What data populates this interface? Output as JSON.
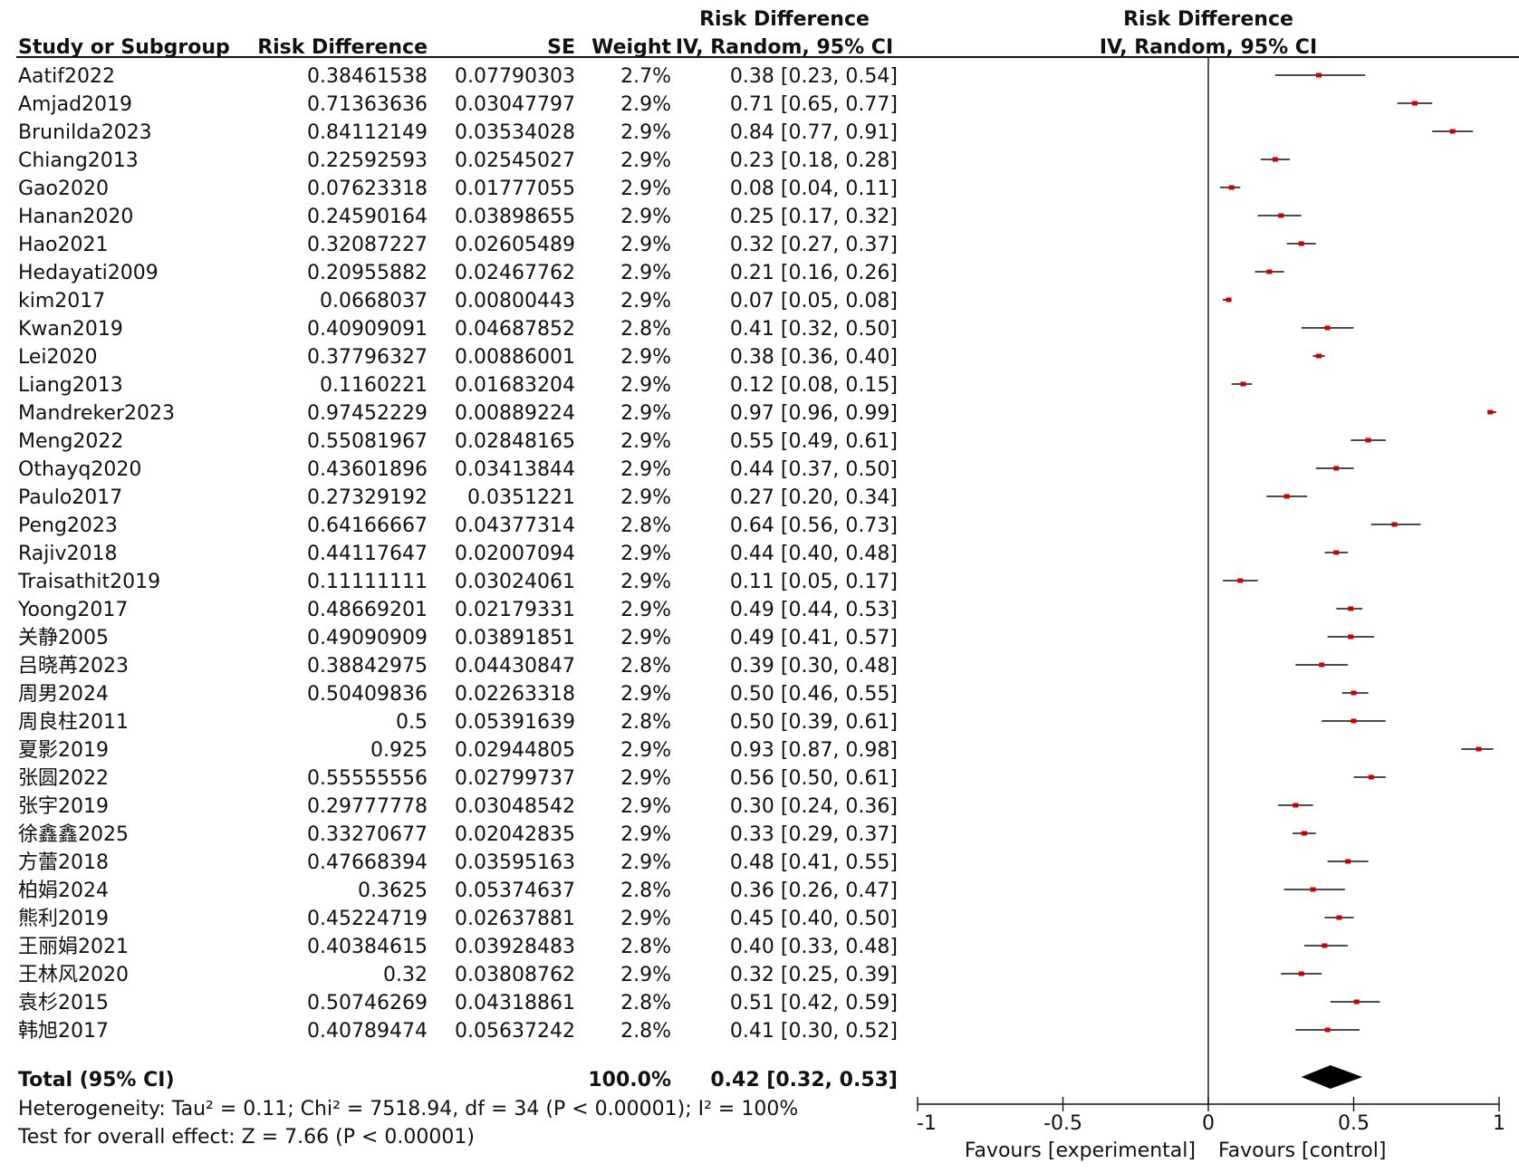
{
  "headers": {
    "group_title_left": "Risk Difference",
    "group_title_right": "Risk Difference",
    "study": "Study or Subgroup",
    "rd": "Risk Difference",
    "se": "SE",
    "weight": "Weight",
    "ci_method_left": "IV, Random, 95% CI",
    "ci_method_right": "IV, Random, 95% CI"
  },
  "total": {
    "label": "Total (95% CI)",
    "weight": "100.0%",
    "ci_text": "0.42 [0.32, 0.53]"
  },
  "heterogeneity": "Heterogeneity: Tau² = 0.11; Chi² = 7518.94, df = 34 (P < 0.00001); I² = 100%",
  "overall_effect": "Test for overall effect: Z = 7.66 (P < 0.00001)",
  "favours_left": "Favours [experimental]",
  "favours_right": "Favours [control]",
  "colors": {
    "point": "#cc0000",
    "line": "#111111",
    "diamond": "#000000"
  },
  "chart_data": {
    "type": "forest",
    "xlim": [
      -1,
      1
    ],
    "xticks": [
      "-1",
      "-0.5",
      "0",
      "0.5",
      "1"
    ],
    "xtick_values": [
      -1,
      -0.5,
      0,
      0.5,
      1
    ],
    "studies": [
      {
        "name": "Aatif2022",
        "rd": "0.38461538",
        "se": "0.07790303",
        "weight": "2.7%",
        "ci": "0.38 [0.23, 0.54]",
        "est": 0.38,
        "lo": 0.23,
        "hi": 0.54
      },
      {
        "name": "Amjad2019",
        "rd": "0.71363636",
        "se": "0.03047797",
        "weight": "2.9%",
        "ci": "0.71 [0.65, 0.77]",
        "est": 0.71,
        "lo": 0.65,
        "hi": 0.77
      },
      {
        "name": "Brunilda2023",
        "rd": "0.84112149",
        "se": "0.03534028",
        "weight": "2.9%",
        "ci": "0.84 [0.77, 0.91]",
        "est": 0.84,
        "lo": 0.77,
        "hi": 0.91
      },
      {
        "name": "Chiang2013",
        "rd": "0.22592593",
        "se": "0.02545027",
        "weight": "2.9%",
        "ci": "0.23 [0.18, 0.28]",
        "est": 0.23,
        "lo": 0.18,
        "hi": 0.28
      },
      {
        "name": "Gao2020",
        "rd": "0.07623318",
        "se": "0.01777055",
        "weight": "2.9%",
        "ci": "0.08 [0.04, 0.11]",
        "est": 0.08,
        "lo": 0.04,
        "hi": 0.11
      },
      {
        "name": "Hanan2020",
        "rd": "0.24590164",
        "se": "0.03898655",
        "weight": "2.9%",
        "ci": "0.25 [0.17, 0.32]",
        "est": 0.25,
        "lo": 0.17,
        "hi": 0.32
      },
      {
        "name": "Hao2021",
        "rd": "0.32087227",
        "se": "0.02605489",
        "weight": "2.9%",
        "ci": "0.32 [0.27, 0.37]",
        "est": 0.32,
        "lo": 0.27,
        "hi": 0.37
      },
      {
        "name": "Hedayati2009",
        "rd": "0.20955882",
        "se": "0.02467762",
        "weight": "2.9%",
        "ci": "0.21 [0.16, 0.26]",
        "est": 0.21,
        "lo": 0.16,
        "hi": 0.26
      },
      {
        "name": "kim2017",
        "rd": "0.0668037",
        "se": "0.00800443",
        "weight": "2.9%",
        "ci": "0.07 [0.05, 0.08]",
        "est": 0.07,
        "lo": 0.05,
        "hi": 0.08
      },
      {
        "name": "Kwan2019",
        "rd": "0.40909091",
        "se": "0.04687852",
        "weight": "2.8%",
        "ci": "0.41 [0.32, 0.50]",
        "est": 0.41,
        "lo": 0.32,
        "hi": 0.5
      },
      {
        "name": "Lei2020",
        "rd": "0.37796327",
        "se": "0.00886001",
        "weight": "2.9%",
        "ci": "0.38 [0.36, 0.40]",
        "est": 0.38,
        "lo": 0.36,
        "hi": 0.4
      },
      {
        "name": "Liang2013",
        "rd": "0.1160221",
        "se": "0.01683204",
        "weight": "2.9%",
        "ci": "0.12 [0.08, 0.15]",
        "est": 0.12,
        "lo": 0.08,
        "hi": 0.15
      },
      {
        "name": "Mandreker2023",
        "rd": "0.97452229",
        "se": "0.00889224",
        "weight": "2.9%",
        "ci": "0.97 [0.96, 0.99]",
        "est": 0.97,
        "lo": 0.96,
        "hi": 0.99
      },
      {
        "name": "Meng2022",
        "rd": "0.55081967",
        "se": "0.02848165",
        "weight": "2.9%",
        "ci": "0.55 [0.49, 0.61]",
        "est": 0.55,
        "lo": 0.49,
        "hi": 0.61
      },
      {
        "name": "Othayq2020",
        "rd": "0.43601896",
        "se": "0.03413844",
        "weight": "2.9%",
        "ci": "0.44 [0.37, 0.50]",
        "est": 0.44,
        "lo": 0.37,
        "hi": 0.5
      },
      {
        "name": "Paulo2017",
        "rd": "0.27329192",
        "se": "0.0351221",
        "weight": "2.9%",
        "ci": "0.27 [0.20, 0.34]",
        "est": 0.27,
        "lo": 0.2,
        "hi": 0.34
      },
      {
        "name": "Peng2023",
        "rd": "0.64166667",
        "se": "0.04377314",
        "weight": "2.8%",
        "ci": "0.64 [0.56, 0.73]",
        "est": 0.64,
        "lo": 0.56,
        "hi": 0.73
      },
      {
        "name": "Rajiv2018",
        "rd": "0.44117647",
        "se": "0.02007094",
        "weight": "2.9%",
        "ci": "0.44 [0.40, 0.48]",
        "est": 0.44,
        "lo": 0.4,
        "hi": 0.48
      },
      {
        "name": "Traisathit2019",
        "rd": "0.11111111",
        "se": "0.03024061",
        "weight": "2.9%",
        "ci": "0.11 [0.05, 0.17]",
        "est": 0.11,
        "lo": 0.05,
        "hi": 0.17
      },
      {
        "name": "Yoong2017",
        "rd": "0.48669201",
        "se": "0.02179331",
        "weight": "2.9%",
        "ci": "0.49 [0.44, 0.53]",
        "est": 0.49,
        "lo": 0.44,
        "hi": 0.53
      },
      {
        "name": "关静2005",
        "rd": "0.49090909",
        "se": "0.03891851",
        "weight": "2.9%",
        "ci": "0.49 [0.41, 0.57]",
        "est": 0.49,
        "lo": 0.41,
        "hi": 0.57
      },
      {
        "name": "吕晓苒2023",
        "rd": "0.38842975",
        "se": "0.04430847",
        "weight": "2.8%",
        "ci": "0.39 [0.30, 0.48]",
        "est": 0.39,
        "lo": 0.3,
        "hi": 0.48
      },
      {
        "name": "周男2024",
        "rd": "0.50409836",
        "se": "0.02263318",
        "weight": "2.9%",
        "ci": "0.50 [0.46, 0.55]",
        "est": 0.5,
        "lo": 0.46,
        "hi": 0.55
      },
      {
        "name": "周良柱2011",
        "rd": "0.5",
        "se": "0.05391639",
        "weight": "2.8%",
        "ci": "0.50 [0.39, 0.61]",
        "est": 0.5,
        "lo": 0.39,
        "hi": 0.61
      },
      {
        "name": "夏影2019",
        "rd": "0.925",
        "se": "0.02944805",
        "weight": "2.9%",
        "ci": "0.93 [0.87, 0.98]",
        "est": 0.93,
        "lo": 0.87,
        "hi": 0.98
      },
      {
        "name": "张圆2022",
        "rd": "0.55555556",
        "se": "0.02799737",
        "weight": "2.9%",
        "ci": "0.56 [0.50, 0.61]",
        "est": 0.56,
        "lo": 0.5,
        "hi": 0.61
      },
      {
        "name": "张宇2019",
        "rd": "0.29777778",
        "se": "0.03048542",
        "weight": "2.9%",
        "ci": "0.30 [0.24, 0.36]",
        "est": 0.3,
        "lo": 0.24,
        "hi": 0.36
      },
      {
        "name": "徐鑫鑫2025",
        "rd": "0.33270677",
        "se": "0.02042835",
        "weight": "2.9%",
        "ci": "0.33 [0.29, 0.37]",
        "est": 0.33,
        "lo": 0.29,
        "hi": 0.37
      },
      {
        "name": "方蕾2018",
        "rd": "0.47668394",
        "se": "0.03595163",
        "weight": "2.9%",
        "ci": "0.48 [0.41, 0.55]",
        "est": 0.48,
        "lo": 0.41,
        "hi": 0.55
      },
      {
        "name": "柏娟2024",
        "rd": "0.3625",
        "se": "0.05374637",
        "weight": "2.8%",
        "ci": "0.36 [0.26, 0.47]",
        "est": 0.36,
        "lo": 0.26,
        "hi": 0.47
      },
      {
        "name": "熊利2019",
        "rd": "0.45224719",
        "se": "0.02637881",
        "weight": "2.9%",
        "ci": "0.45 [0.40, 0.50]",
        "est": 0.45,
        "lo": 0.4,
        "hi": 0.5
      },
      {
        "name": "王丽娟2021",
        "rd": "0.40384615",
        "se": "0.03928483",
        "weight": "2.8%",
        "ci": "0.40 [0.33, 0.48]",
        "est": 0.4,
        "lo": 0.33,
        "hi": 0.48
      },
      {
        "name": "王林风2020",
        "rd": "0.32",
        "se": "0.03808762",
        "weight": "2.9%",
        "ci": "0.32 [0.25, 0.39]",
        "est": 0.32,
        "lo": 0.25,
        "hi": 0.39
      },
      {
        "name": "袁杉2015",
        "rd": "0.50746269",
        "se": "0.04318861",
        "weight": "2.8%",
        "ci": "0.51 [0.42, 0.59]",
        "est": 0.51,
        "lo": 0.42,
        "hi": 0.59
      },
      {
        "name": "韩旭2017",
        "rd": "0.40789474",
        "se": "0.05637242",
        "weight": "2.8%",
        "ci": "0.41 [0.30, 0.52]",
        "est": 0.41,
        "lo": 0.3,
        "hi": 0.52
      }
    ],
    "pooled": {
      "est": 0.42,
      "lo": 0.32,
      "hi": 0.53
    }
  }
}
